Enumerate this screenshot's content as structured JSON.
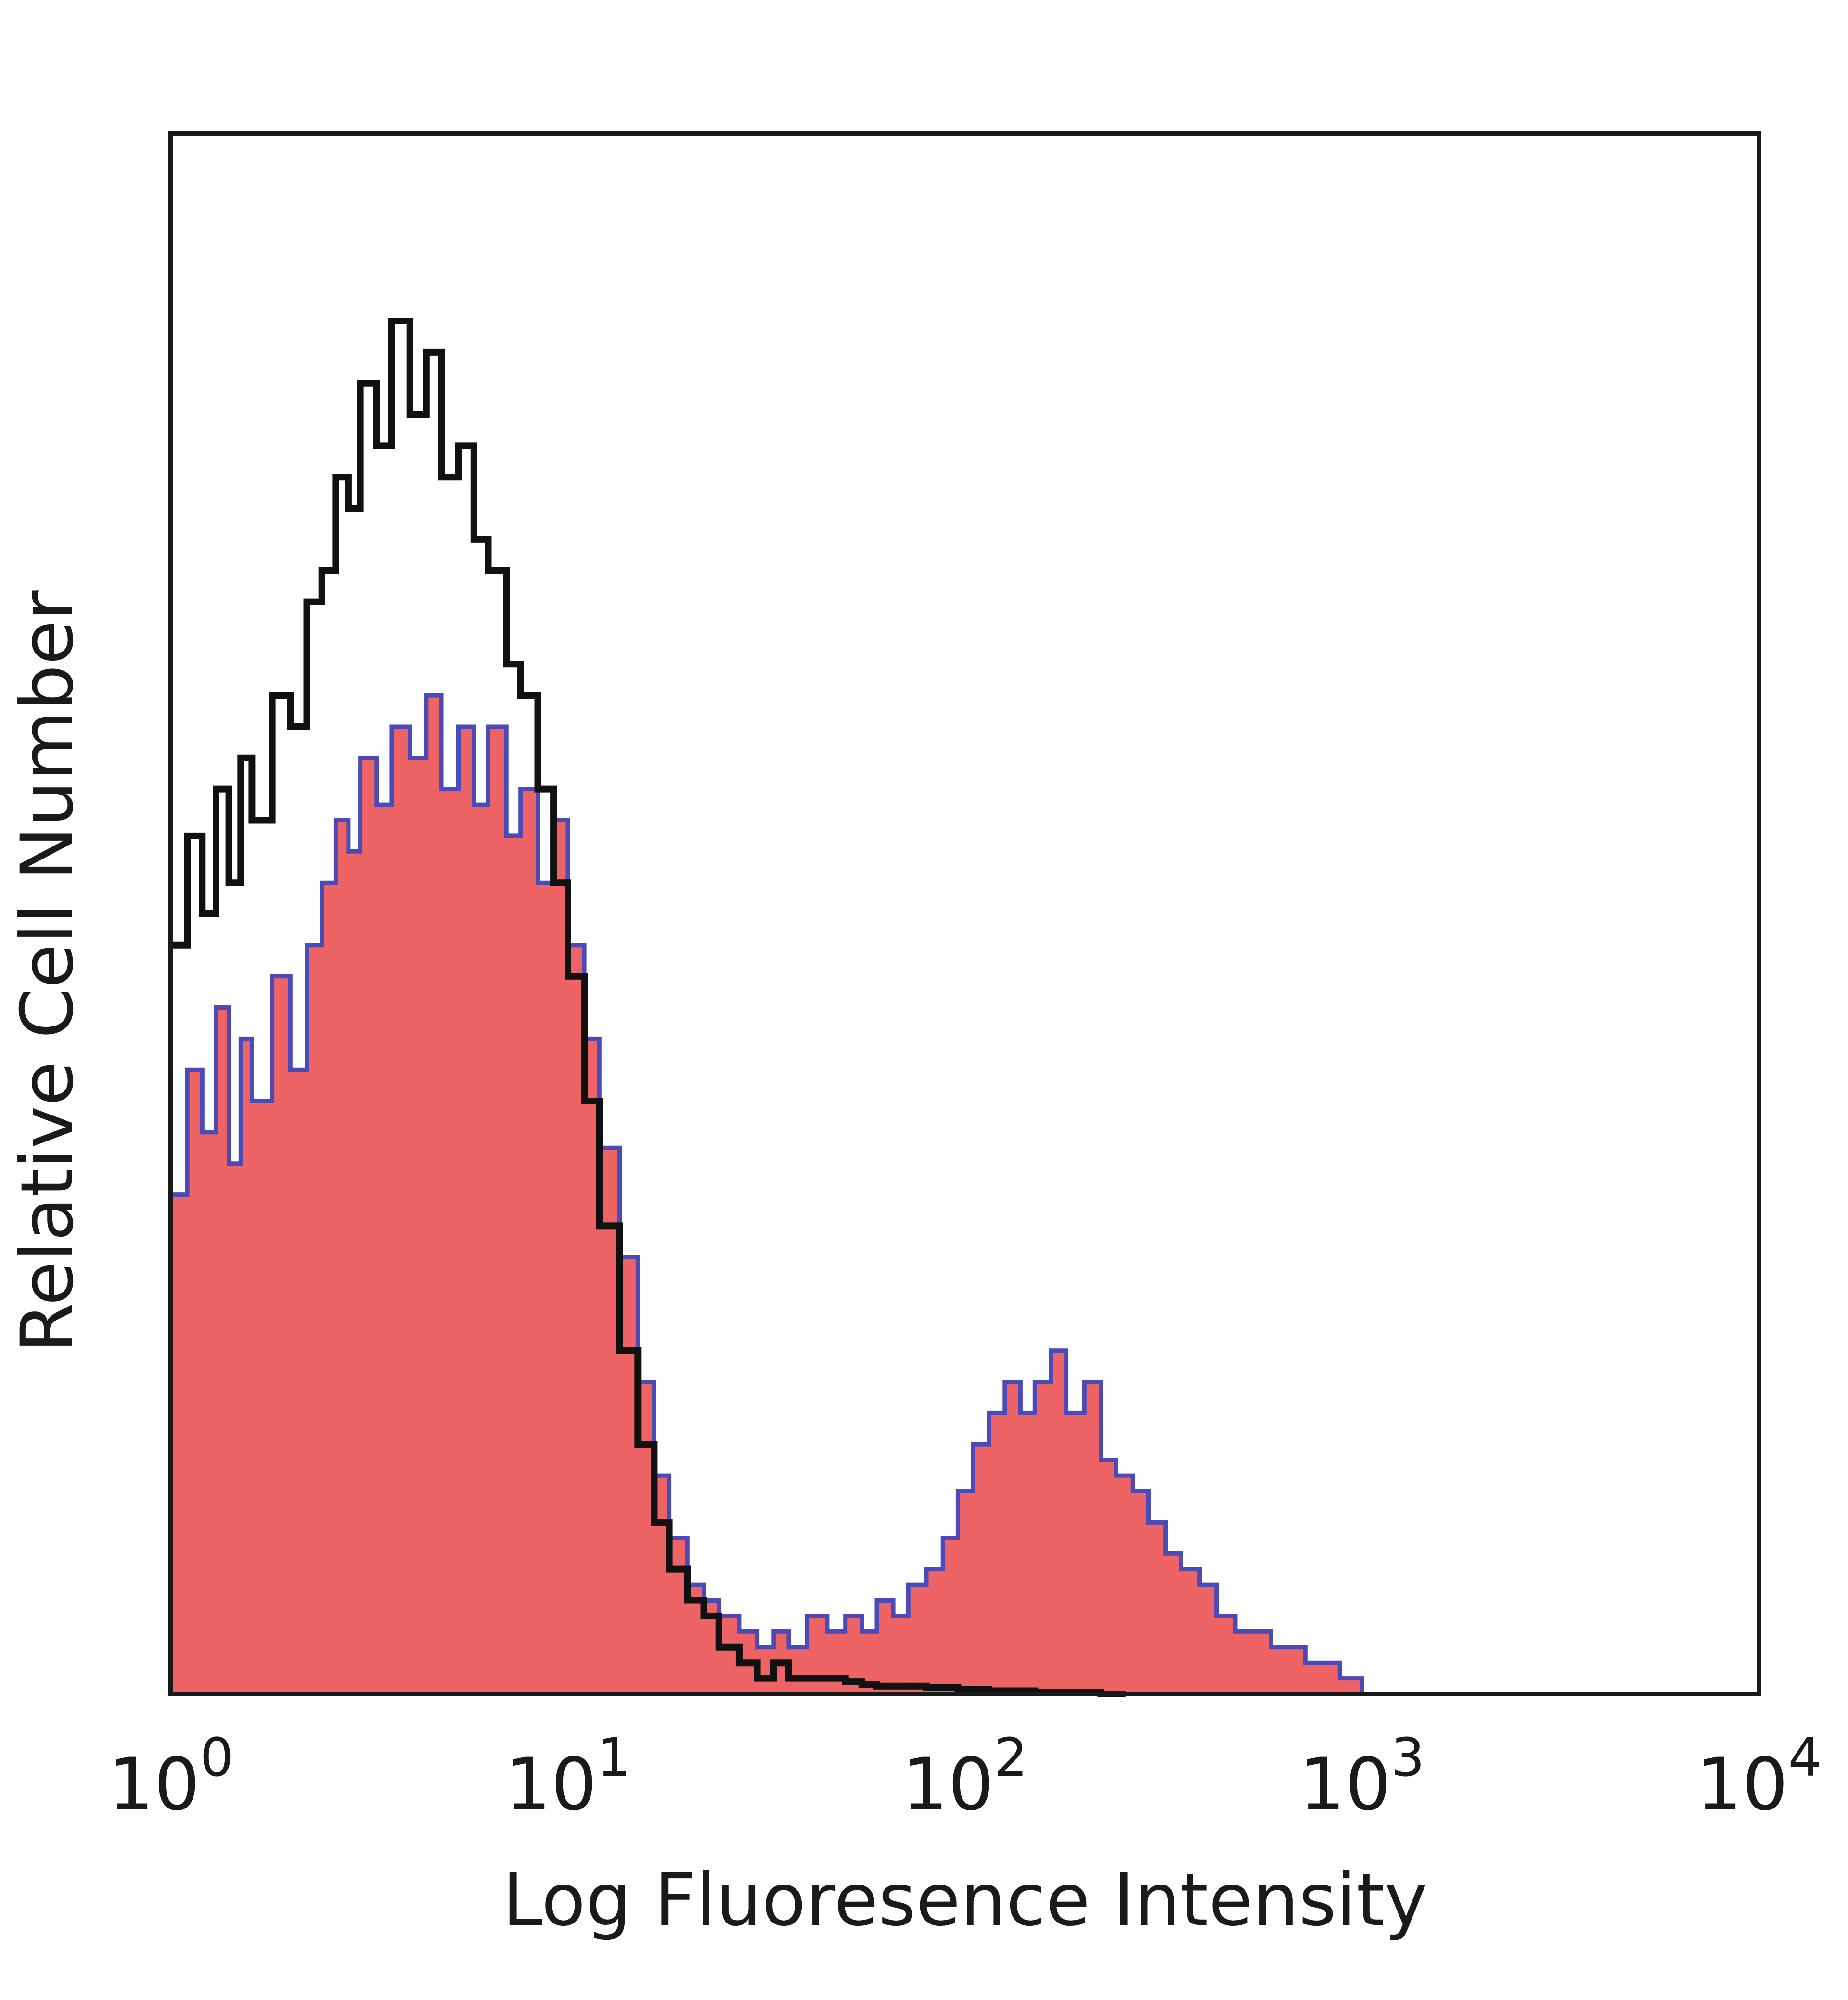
{
  "chart_data": {
    "type": "area",
    "title": "",
    "xlabel": "Log Fluoresence Intensity",
    "ylabel": "Relative Cell Number",
    "xscale": "log",
    "xlim": [
      1,
      10000
    ],
    "ylim": [
      0,
      100
    ],
    "grid": false,
    "legend": "none",
    "x_ticks": [
      {
        "value": 1,
        "base": "10",
        "exp": "0"
      },
      {
        "value": 10,
        "base": "10",
        "exp": "1"
      },
      {
        "value": 100,
        "base": "10",
        "exp": "2"
      },
      {
        "value": 1000,
        "base": "10",
        "exp": "3"
      },
      {
        "value": 10000,
        "base": "10",
        "exp": "4"
      }
    ],
    "series": [
      {
        "color": "#ee6464",
        "fill": true,
        "outline": "#4a4ab8",
        "x": [
          1.0,
          1.1,
          1.2,
          1.3,
          1.4,
          1.5,
          1.6,
          1.8,
          2.0,
          2.2,
          2.4,
          2.6,
          2.8,
          3.0,
          3.3,
          3.6,
          4.0,
          4.4,
          4.8,
          5.3,
          5.8,
          6.3,
          7.0,
          7.6,
          8.4,
          9.2,
          10,
          11,
          12,
          13.5,
          15,
          16.5,
          18,
          20,
          22,
          24,
          27,
          30,
          33,
          36,
          40,
          45,
          50,
          55,
          60,
          66,
          72,
          80,
          88,
          96,
          105,
          115,
          126,
          138,
          150,
          165,
          180,
          200,
          220,
          240,
          265,
          290,
          320,
          350,
          390,
          430,
          480,
          530,
          590,
          650,
          720,
          800,
          880,
          1000
        ],
        "values": [
          32,
          40,
          36,
          44,
          34,
          42,
          38,
          46,
          40,
          48,
          52,
          56,
          54,
          60,
          57,
          62,
          60,
          64,
          58,
          62,
          57,
          62,
          55,
          58,
          52,
          56,
          48,
          42,
          35,
          28,
          20,
          14,
          10,
          7,
          6,
          5,
          4,
          3,
          4,
          3,
          5,
          4,
          5,
          4,
          6,
          5,
          7,
          8,
          10,
          13,
          16,
          18,
          20,
          18,
          20,
          22,
          18,
          20,
          15,
          14,
          13,
          11,
          9,
          8,
          7,
          5,
          4,
          4,
          3,
          3,
          2,
          2,
          1,
          0
        ]
      },
      {
        "color": "#111111",
        "fill": false,
        "x": [
          1.0,
          1.1,
          1.2,
          1.3,
          1.4,
          1.5,
          1.6,
          1.8,
          2.0,
          2.2,
          2.4,
          2.6,
          2.8,
          3.0,
          3.3,
          3.6,
          4.0,
          4.4,
          4.8,
          5.3,
          5.8,
          6.3,
          7.0,
          7.6,
          8.4,
          9.2,
          10,
          11,
          12,
          13.5,
          15,
          16.5,
          18,
          20,
          22,
          24,
          27,
          30,
          33,
          36,
          40,
          45,
          50,
          55,
          60,
          66,
          72,
          80,
          88,
          96,
          105,
          115,
          126,
          138,
          150,
          165,
          180,
          200,
          220,
          240
        ],
        "values": [
          48,
          55,
          50,
          58,
          52,
          60,
          56,
          64,
          62,
          70,
          72,
          78,
          76,
          84,
          80,
          88,
          82,
          86,
          78,
          80,
          74,
          72,
          66,
          64,
          58,
          52,
          46,
          38,
          30,
          22,
          16,
          11,
          8,
          6,
          5,
          3,
          2,
          1,
          2,
          1,
          1,
          1,
          0.8,
          0.6,
          0.5,
          0.5,
          0.5,
          0.4,
          0.4,
          0.3,
          0.3,
          0.2,
          0.2,
          0.2,
          0.1,
          0.1,
          0.1,
          0.1,
          0,
          0
        ]
      }
    ]
  }
}
